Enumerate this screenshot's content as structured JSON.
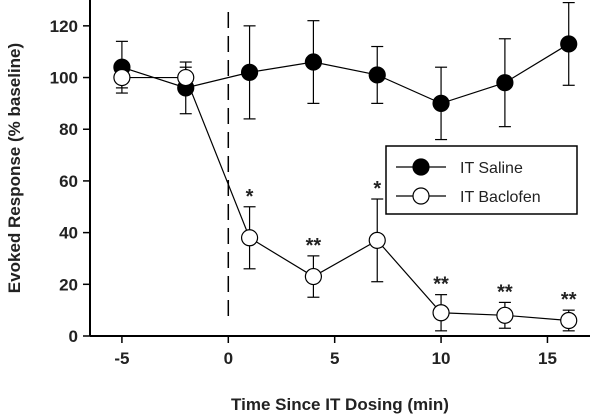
{
  "chart_data": {
    "type": "line",
    "title": "",
    "xlabel": "Time Since IT Dosing (min)",
    "ylabel": "Evoked Response (% baseline)",
    "xlim": [
      -6.5,
      17
    ],
    "ylim": [
      0,
      130
    ],
    "xticks": [
      -5,
      0,
      5,
      10,
      15
    ],
    "yticks": [
      0,
      20,
      40,
      60,
      80,
      100,
      120
    ],
    "dosing_marker_x": 0,
    "legend_position": "center-right",
    "grid": false,
    "series": [
      {
        "name": "IT Saline",
        "marker": "filled-circle",
        "color": "#000000",
        "x": [
          -5,
          -2,
          1,
          4,
          7,
          10,
          13,
          16
        ],
        "y": [
          104,
          96,
          102,
          106,
          101,
          90,
          98,
          113
        ],
        "err": [
          10,
          10,
          18,
          16,
          11,
          14,
          17,
          16
        ]
      },
      {
        "name": "IT Baclofen",
        "marker": "open-circle",
        "color": "#000000",
        "x": [
          -5,
          -2,
          1,
          4,
          7,
          10,
          13,
          16
        ],
        "y": [
          100,
          100,
          38,
          23,
          37,
          9,
          8,
          6
        ],
        "err": [
          4,
          4,
          12,
          8,
          16,
          7,
          5,
          4
        ]
      }
    ],
    "annotations": [
      {
        "x": 1,
        "text": "*"
      },
      {
        "x": 4,
        "text": "**"
      },
      {
        "x": 7,
        "text": "*"
      },
      {
        "x": 10,
        "text": "**"
      },
      {
        "x": 13,
        "text": "**"
      },
      {
        "x": 16,
        "text": "**"
      }
    ]
  }
}
